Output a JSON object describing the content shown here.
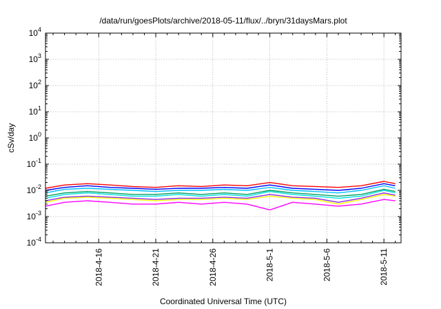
{
  "chart_data": {
    "type": "line",
    "title": "/data/run/goesPlots/archive/2018-05-11/flux/../bryn/31daysMars.plot",
    "xlabel": "Coordinated Universal Time (UTC)",
    "ylabel": "cSv/day",
    "y_scale": "log",
    "ylim": [
      0.0001,
      10000
    ],
    "xlim": [
      "2018-04-11T08:00",
      "2018-05-12T12:00"
    ],
    "x_axis_type": "date",
    "grid": true,
    "legend": "none",
    "y_ticks": [
      {
        "value": 0.0001,
        "base": "10",
        "exp": "-4"
      },
      {
        "value": 0.001,
        "base": "10",
        "exp": "-3"
      },
      {
        "value": 0.01,
        "base": "10",
        "exp": "-2"
      },
      {
        "value": 0.1,
        "base": "10",
        "exp": "-1"
      },
      {
        "value": 1,
        "base": "10",
        "exp": "0"
      },
      {
        "value": 10,
        "base": "10",
        "exp": "1"
      },
      {
        "value": 100,
        "base": "10",
        "exp": "2"
      },
      {
        "value": 1000,
        "base": "10",
        "exp": "3"
      },
      {
        "value": 10000,
        "base": "10",
        "exp": "4"
      }
    ],
    "x_ticks": [
      {
        "value": "2018-04-16",
        "label": "2018-4-16"
      },
      {
        "value": "2018-04-21",
        "label": "2018-4-21"
      },
      {
        "value": "2018-04-26",
        "label": "2018-4-26"
      },
      {
        "value": "2018-05-01",
        "label": "2018-5-1"
      },
      {
        "value": "2018-05-06",
        "label": "2018-5-6"
      },
      {
        "value": "2018-05-11",
        "label": "2018-5-11"
      }
    ],
    "x": [
      "2018-04-11",
      "2018-04-13",
      "2018-04-15",
      "2018-04-17",
      "2018-04-19",
      "2018-04-21",
      "2018-04-23",
      "2018-04-25",
      "2018-04-27",
      "2018-04-29",
      "2018-05-01",
      "2018-05-03",
      "2018-05-05",
      "2018-05-07",
      "2018-05-09",
      "2018-05-11",
      "2018-05-12"
    ],
    "series": [
      {
        "color": "#ff0000",
        "values": [
          0.012,
          0.016,
          0.018,
          0.016,
          0.014,
          0.013,
          0.015,
          0.014,
          0.016,
          0.015,
          0.02,
          0.015,
          0.014,
          0.013,
          0.015,
          0.022,
          0.018
        ]
      },
      {
        "color": "#0000ff",
        "values": [
          0.01,
          0.013,
          0.015,
          0.013,
          0.012,
          0.011,
          0.012,
          0.012,
          0.013,
          0.012,
          0.016,
          0.012,
          0.011,
          0.01,
          0.012,
          0.018,
          0.015
        ]
      },
      {
        "color": "#00c0ff",
        "values": [
          0.008,
          0.011,
          0.012,
          0.011,
          0.01,
          0.009,
          0.01,
          0.01,
          0.011,
          0.01,
          0.013,
          0.01,
          0.009,
          0.008,
          0.01,
          0.015,
          0.012
        ]
      },
      {
        "color": "#00a060",
        "values": [
          0.006,
          0.008,
          0.009,
          0.008,
          0.007,
          0.007,
          0.008,
          0.007,
          0.008,
          0.007,
          0.01,
          0.008,
          0.007,
          0.006,
          0.007,
          0.011,
          0.009
        ]
      },
      {
        "color": "#00e0e0",
        "values": [
          0.005,
          0.007,
          0.008,
          0.007,
          0.006,
          0.006,
          0.007,
          0.006,
          0.007,
          0.006,
          0.009,
          0.007,
          0.006,
          0.005,
          0.006,
          0.01,
          0.008
        ]
      },
      {
        "color": "#8a2be2",
        "values": [
          0.004,
          0.0055,
          0.006,
          0.0055,
          0.005,
          0.0045,
          0.005,
          0.005,
          0.0055,
          0.005,
          0.007,
          0.0055,
          0.005,
          0.0035,
          0.005,
          0.008,
          0.0065
        ]
      },
      {
        "color": "#ffff00",
        "values": [
          0.0035,
          0.005,
          0.0055,
          0.005,
          0.0045,
          0.004,
          0.0045,
          0.0045,
          0.005,
          0.0045,
          0.006,
          0.005,
          0.0045,
          0.003,
          0.0045,
          0.007,
          0.006
        ]
      },
      {
        "color": "#ff00ff",
        "values": [
          0.0025,
          0.0035,
          0.004,
          0.0035,
          0.003,
          0.003,
          0.0035,
          0.003,
          0.0035,
          0.003,
          0.0018,
          0.0035,
          0.003,
          0.0025,
          0.003,
          0.0045,
          0.004
        ]
      }
    ]
  }
}
